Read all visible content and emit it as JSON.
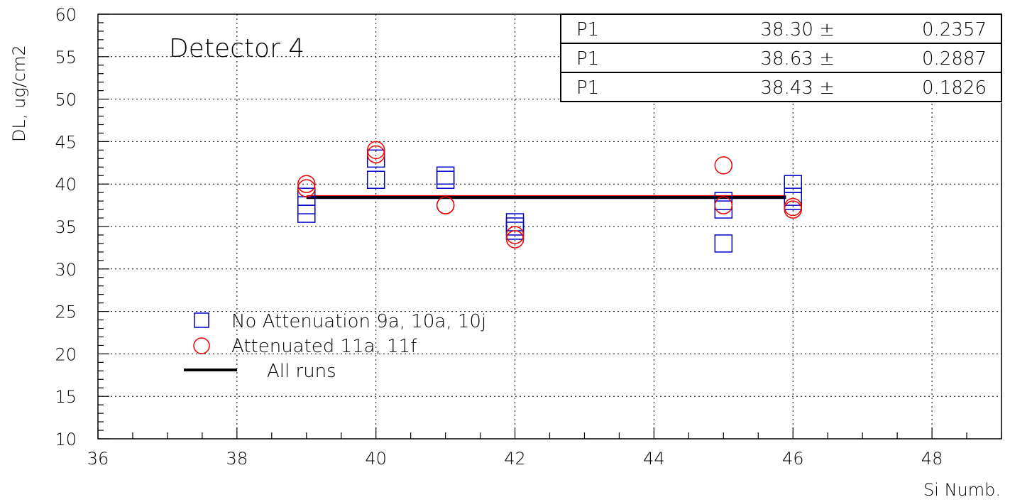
{
  "chart_data": {
    "type": "scatter",
    "annotation": "Detector 4",
    "xlabel": "Si Numb.",
    "ylabel": "DL, ug/cm2",
    "xlim": [
      36,
      49
    ],
    "ylim": [
      10,
      60
    ],
    "x_ticks": [
      36,
      38,
      40,
      42,
      44,
      46,
      48
    ],
    "y_ticks": [
      10,
      15,
      20,
      25,
      30,
      35,
      40,
      45,
      50,
      55,
      60
    ],
    "grid": true,
    "legend_position": "bottom-left",
    "series": [
      {
        "name": "No Attenuation 9a, 10a, 10j",
        "marker": "square",
        "color": "#0000cc",
        "points": [
          {
            "x": 39,
            "y": 36.5
          },
          {
            "x": 39,
            "y": 37.5
          },
          {
            "x": 39,
            "y": 38.5
          },
          {
            "x": 40,
            "y": 40.5
          },
          {
            "x": 40,
            "y": 43.0
          },
          {
            "x": 41,
            "y": 40.5
          },
          {
            "x": 41,
            "y": 41.0
          },
          {
            "x": 42,
            "y": 34.5
          },
          {
            "x": 42,
            "y": 35.0
          },
          {
            "x": 42,
            "y": 35.5
          },
          {
            "x": 45,
            "y": 33.0
          },
          {
            "x": 45,
            "y": 37.0
          },
          {
            "x": 45,
            "y": 38.0
          },
          {
            "x": 46,
            "y": 38.0
          },
          {
            "x": 46,
            "y": 38.5
          },
          {
            "x": 46,
            "y": 40.0
          }
        ]
      },
      {
        "name": "Attenuated 11a, 11f",
        "marker": "circle",
        "color": "#ee0000",
        "points": [
          {
            "x": 39,
            "y": 39.5
          },
          {
            "x": 39,
            "y": 40.0
          },
          {
            "x": 40,
            "y": 43.5
          },
          {
            "x": 40,
            "y": 44.0
          },
          {
            "x": 41,
            "y": 37.5
          },
          {
            "x": 41,
            "y": 37.5
          },
          {
            "x": 42,
            "y": 33.5
          },
          {
            "x": 42,
            "y": 34.0
          },
          {
            "x": 45,
            "y": 37.5
          },
          {
            "x": 45,
            "y": 42.2
          },
          {
            "x": 46,
            "y": 37.0
          },
          {
            "x": 46,
            "y": 37.3
          }
        ]
      },
      {
        "name": "All runs",
        "marker": "line",
        "color": "#000000",
        "x_range": [
          39,
          45.9
        ],
        "y": 38.43
      }
    ],
    "fit_lines": [
      {
        "x_range": [
          39,
          45.9
        ],
        "y": 38.3,
        "color": "#0000cc"
      },
      {
        "x_range": [
          39,
          45.9
        ],
        "y": 38.63,
        "color": "#ee0000"
      }
    ],
    "stats_box": [
      {
        "param": "P1",
        "value": "38.30 ±",
        "error": "0.2357"
      },
      {
        "param": "P1",
        "value": "38.63 ±",
        "error": "0.2887"
      },
      {
        "param": "P1",
        "value": "38.43 ±",
        "error": "0.1826"
      }
    ]
  }
}
